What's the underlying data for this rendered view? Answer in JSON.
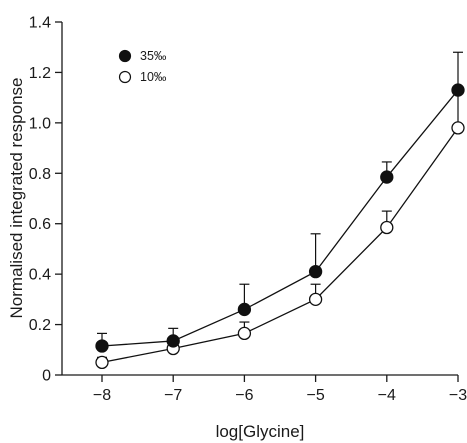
{
  "chart_data": {
    "type": "line",
    "title": "",
    "xlabel": "log[Glycine]",
    "ylabel": "Normalised integrated response",
    "xlim": [
      -8,
      -3
    ],
    "ylim": [
      0,
      1.4
    ],
    "xticks": [
      -8,
      -7,
      -6,
      -5,
      -4,
      -3
    ],
    "xtick_labels": [
      "−8",
      "−7",
      "−6",
      "−5",
      "−4",
      "−3"
    ],
    "yticks": [
      0,
      0.2,
      0.4,
      0.6,
      0.8,
      1.0,
      1.2,
      1.4
    ],
    "ytick_labels": [
      "0",
      "0.2",
      "0.4",
      "0.6",
      "0.8",
      "1.0",
      "1.2",
      "1.4"
    ],
    "grid": false,
    "legend_position": "top-left",
    "series": [
      {
        "name": "35‰",
        "marker": "filled-circle",
        "color": "#111111",
        "x": [
          -8,
          -7,
          -6,
          -5,
          -4,
          -3
        ],
        "y": [
          0.115,
          0.135,
          0.26,
          0.41,
          0.785,
          1.13
        ],
        "error": [
          0.05,
          0.05,
          0.1,
          0.15,
          0.06,
          0.15
        ]
      },
      {
        "name": "10‰",
        "marker": "open-circle",
        "color": "#111111",
        "x": [
          -8,
          -7,
          -6,
          -5,
          -4,
          -3
        ],
        "y": [
          0.05,
          0.105,
          0.165,
          0.3,
          0.585,
          0.98
        ],
        "error": [
          0.02,
          0.03,
          0.045,
          0.06,
          0.065,
          0.15
        ]
      }
    ]
  }
}
